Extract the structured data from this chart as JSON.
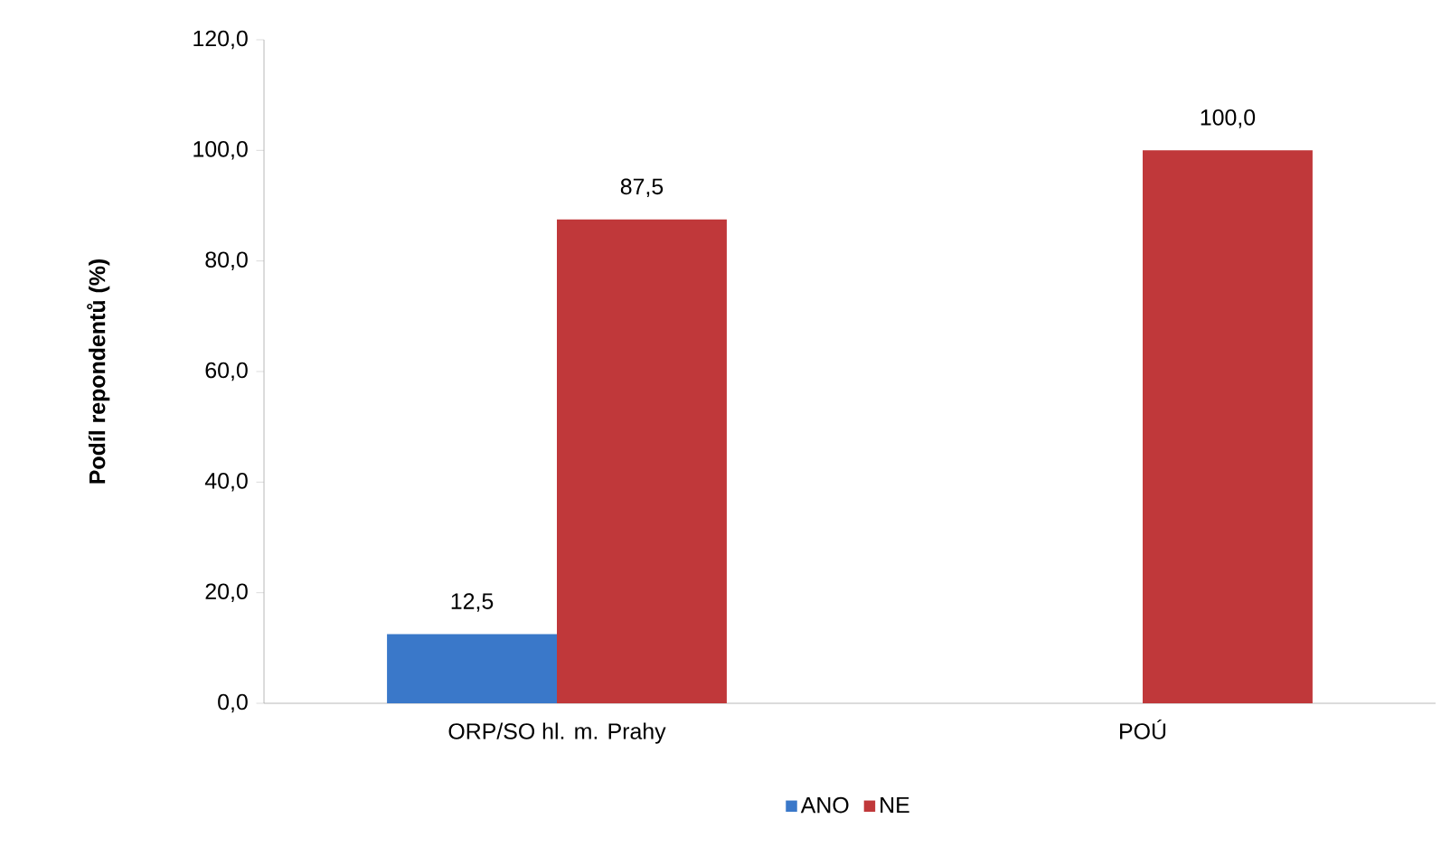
{
  "chart_data": {
    "type": "bar",
    "ylabel": "Podíl repondentů (%)",
    "categories": [
      "ORP/SO hl. m. Prahy",
      "POÚ"
    ],
    "series": [
      {
        "name": "ANO",
        "color": "#3a78c9",
        "values": [
          12.5,
          null
        ],
        "value_labels": [
          "12,5",
          null
        ]
      },
      {
        "name": "NE",
        "color": "#c0383a",
        "values": [
          87.5,
          100.0
        ],
        "value_labels": [
          "87,5",
          "100,0"
        ]
      }
    ],
    "ylim": [
      0,
      120
    ],
    "yticks": [
      {
        "value": 0,
        "label": "0,0"
      },
      {
        "value": 20,
        "label": "20,0"
      },
      {
        "value": 40,
        "label": "40,0"
      },
      {
        "value": 60,
        "label": "60,0"
      },
      {
        "value": 80,
        "label": "80,0"
      },
      {
        "value": 100,
        "label": "100,0"
      },
      {
        "value": 120,
        "label": "120,0"
      }
    ],
    "grid": false,
    "legend": "bottom"
  }
}
